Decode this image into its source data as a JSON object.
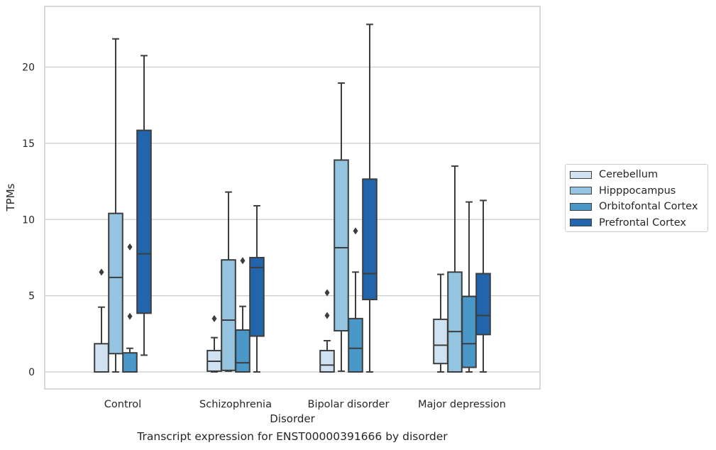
{
  "chart_data": {
    "type": "box",
    "xlabel": "Disorder",
    "ylabel": "TPMs",
    "caption": "Transcript expression for ENST00000391666 by disorder",
    "ylim": [
      -1.1,
      24
    ],
    "yticks": [
      0,
      5,
      10,
      15,
      20
    ],
    "grid": true,
    "legend_position": "right",
    "categories": [
      "Control",
      "Schizophrenia",
      "Bipolar disorder",
      "Major depression"
    ],
    "series": [
      {
        "name": "Cerebellum",
        "color": "#d0e1f2",
        "boxes": [
          {
            "whislo": 0,
            "q1": 0,
            "med": 0,
            "q3": 1.85,
            "whishi": 4.25,
            "fliers": [
              6.55
            ]
          },
          {
            "whislo": 0,
            "q1": 0.05,
            "med": 0.7,
            "q3": 1.4,
            "whishi": 2.25,
            "fliers": [
              3.5
            ]
          },
          {
            "whislo": 0,
            "q1": 0,
            "med": 0.45,
            "q3": 1.4,
            "whishi": 2.05,
            "fliers": [
              3.7,
              5.2
            ]
          },
          {
            "whislo": 0,
            "q1": 0.55,
            "med": 1.75,
            "q3": 3.45,
            "whishi": 6.4,
            "fliers": []
          }
        ]
      },
      {
        "name": "Hipppocampus",
        "color": "#94c4df",
        "boxes": [
          {
            "whislo": 0,
            "q1": 1.2,
            "med": 6.2,
            "q3": 10.4,
            "whishi": 21.85,
            "fliers": []
          },
          {
            "whislo": 0.05,
            "q1": 0.1,
            "med": 3.4,
            "q3": 7.35,
            "whishi": 11.8,
            "fliers": []
          },
          {
            "whislo": 0.05,
            "q1": 2.7,
            "med": 8.15,
            "q3": 13.9,
            "whishi": 18.95,
            "fliers": []
          },
          {
            "whislo": 0,
            "q1": 0,
            "med": 2.65,
            "q3": 6.55,
            "whishi": 13.5,
            "fliers": []
          }
        ]
      },
      {
        "name": "Orbitofontal Cortex",
        "color": "#4a98c9",
        "boxes": [
          {
            "whislo": 0,
            "q1": 0,
            "med": 0,
            "q3": 1.25,
            "whishi": 1.55,
            "fliers": [
              3.65,
              8.2
            ]
          },
          {
            "whislo": 0,
            "q1": 0,
            "med": 0.6,
            "q3": 2.75,
            "whishi": 4.3,
            "fliers": [
              7.3
            ]
          },
          {
            "whislo": 0,
            "q1": 0,
            "med": 1.55,
            "q3": 3.5,
            "whishi": 6.55,
            "fliers": [
              9.25
            ]
          },
          {
            "whislo": 0,
            "q1": 0.3,
            "med": 1.85,
            "q3": 4.95,
            "whishi": 11.15,
            "fliers": []
          }
        ]
      },
      {
        "name": "Prefrontal Cortex",
        "color": "#2166ac",
        "boxes": [
          {
            "whislo": 1.1,
            "q1": 3.85,
            "med": 7.75,
            "q3": 15.85,
            "whishi": 20.75,
            "fliers": []
          },
          {
            "whislo": 0,
            "q1": 2.35,
            "med": 6.85,
            "q3": 7.5,
            "whishi": 10.9,
            "fliers": []
          },
          {
            "whislo": 0,
            "q1": 4.75,
            "med": 6.45,
            "q3": 12.65,
            "whishi": 22.8,
            "fliers": []
          },
          {
            "whislo": 0,
            "q1": 2.45,
            "med": 3.7,
            "q3": 6.45,
            "whishi": 11.25,
            "fliers": []
          }
        ]
      }
    ]
  }
}
